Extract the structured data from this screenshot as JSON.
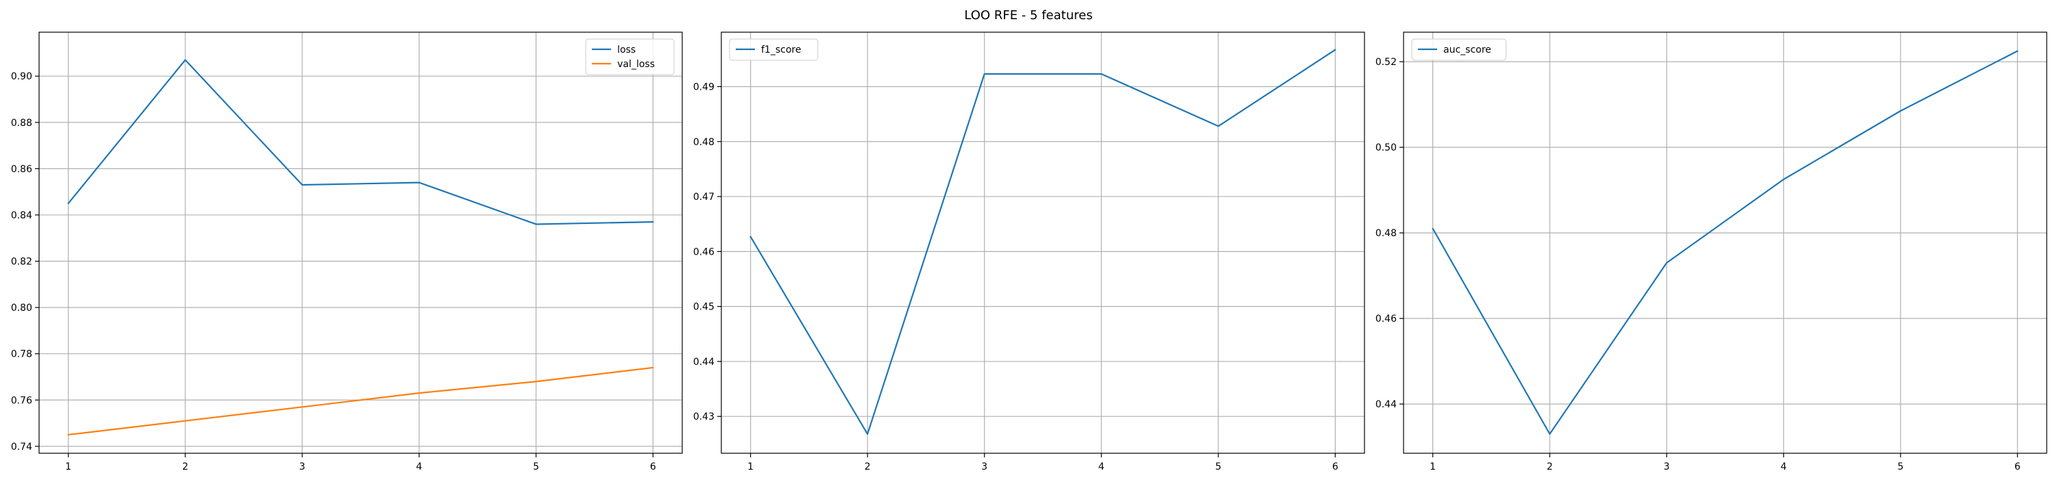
{
  "figure": {
    "suptitle": "LOO RFE - 5 features"
  },
  "chart_data": [
    {
      "type": "line",
      "x": [
        1,
        2,
        3,
        4,
        5,
        6
      ],
      "series": [
        {
          "name": "loss",
          "color": "#1f77b4",
          "values": [
            0.845,
            0.907,
            0.853,
            0.854,
            0.836,
            0.837
          ]
        },
        {
          "name": "val_loss",
          "color": "#ff7f0e",
          "values": [
            0.745,
            0.751,
            0.757,
            0.763,
            0.768,
            0.774
          ]
        }
      ],
      "title": "",
      "xlabel": "",
      "ylabel": "",
      "xlim": [
        0.75,
        6.25
      ],
      "ylim": [
        0.737,
        0.919
      ],
      "xticks": [
        1,
        2,
        3,
        4,
        5,
        6
      ],
      "yticks": [
        0.74,
        0.76,
        0.78,
        0.8,
        0.82,
        0.84,
        0.86,
        0.88,
        0.9
      ],
      "ytick_decimals": 2,
      "grid": true,
      "legend": "upper right"
    },
    {
      "type": "line",
      "x": [
        1,
        2,
        3,
        4,
        5,
        6
      ],
      "series": [
        {
          "name": "f1_score",
          "color": "#1f77b4",
          "values": [
            0.4627,
            0.4268,
            0.4923,
            0.4923,
            0.4828,
            0.4967
          ]
        }
      ],
      "title": "",
      "xlabel": "",
      "ylabel": "",
      "xlim": [
        0.75,
        6.25
      ],
      "ylim": [
        0.4233,
        0.4999
      ],
      "xticks": [
        1,
        2,
        3,
        4,
        5,
        6
      ],
      "yticks": [
        0.43,
        0.44,
        0.45,
        0.46,
        0.47,
        0.48,
        0.49
      ],
      "ytick_decimals": 2,
      "grid": true,
      "legend": "upper left"
    },
    {
      "type": "line",
      "x": [
        1,
        2,
        3,
        4,
        5,
        6
      ],
      "series": [
        {
          "name": "auc_score",
          "color": "#1f77b4",
          "values": [
            0.481,
            0.433,
            0.473,
            0.4925,
            0.5085,
            0.5225
          ]
        }
      ],
      "title": "",
      "xlabel": "",
      "ylabel": "",
      "xlim": [
        0.75,
        6.25
      ],
      "ylim": [
        0.4285,
        0.5269
      ],
      "xticks": [
        1,
        2,
        3,
        4,
        5,
        6
      ],
      "yticks": [
        0.44,
        0.46,
        0.48,
        0.5,
        0.52
      ],
      "ytick_decimals": 2,
      "grid": true,
      "legend": "upper left"
    }
  ]
}
